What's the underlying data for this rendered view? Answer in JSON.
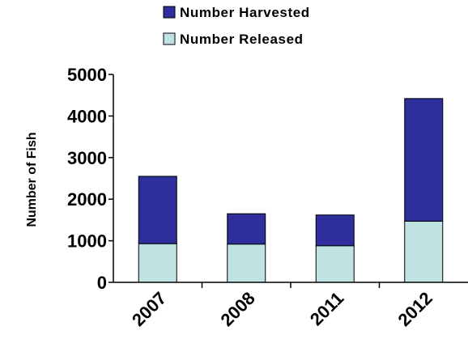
{
  "chart_data": {
    "type": "bar",
    "stacked": true,
    "title": "",
    "xlabel": "",
    "ylabel": "Number of Fish",
    "categories": [
      "2007",
      "2008",
      "2011",
      "2012"
    ],
    "series": [
      {
        "name": "Number Released",
        "values": [
          930,
          920,
          880,
          1470
        ],
        "color": "#bfe3e3"
      },
      {
        "name": "Number Harvested",
        "values": [
          1620,
          730,
          740,
          2950
        ],
        "color": "#2e2e9c"
      }
    ],
    "ylim": [
      0,
      5000
    ],
    "yticks": [
      0,
      1000,
      2000,
      3000,
      4000,
      5000
    ],
    "grid": false,
    "legend": "top",
    "legend_order": [
      "Number Harvested",
      "Number Released"
    ]
  }
}
